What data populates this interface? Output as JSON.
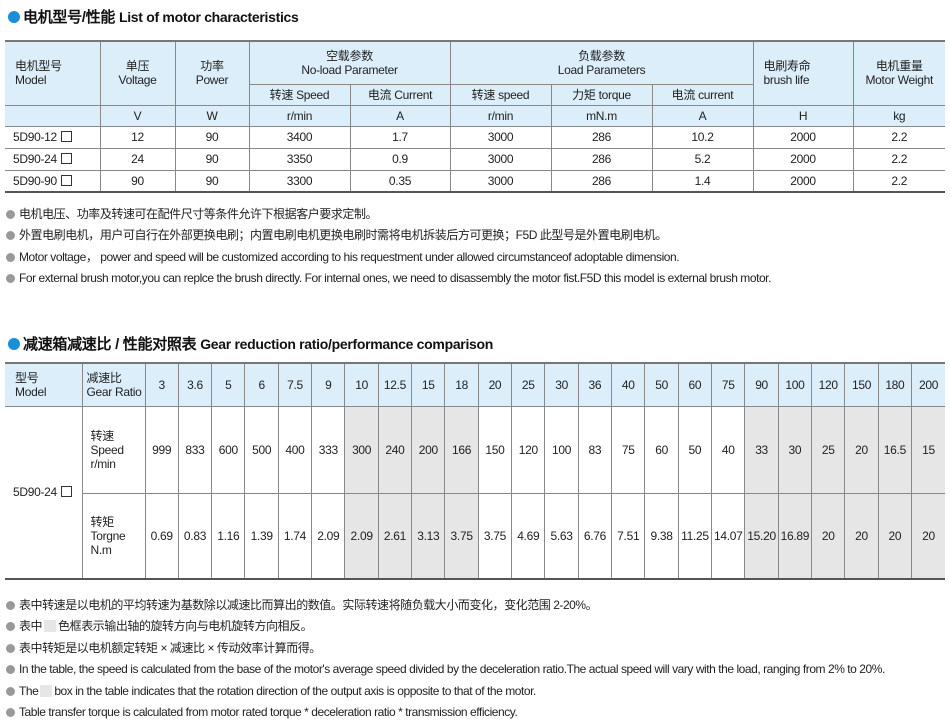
{
  "section1": {
    "title_cn": "电机型号/性能",
    "title_en": "List of motor characteristics",
    "headers": {
      "model": [
        "电机型号",
        "Model"
      ],
      "voltage": [
        "单压",
        "Voltage"
      ],
      "power": [
        "功率",
        "Power"
      ],
      "noload": [
        "空载参数",
        "No-load Parameter"
      ],
      "noload_speed": "转速 Speed",
      "noload_current": "电流 Current",
      "load": [
        "负载参数",
        "Load Parameters"
      ],
      "load_speed": "转速 speed",
      "load_torque": "力矩 torque",
      "load_current": "电流 current",
      "brush": [
        "电刷寿命",
        "brush life"
      ],
      "weight": [
        "电机重量",
        "Motor Weight"
      ]
    },
    "units": [
      "V",
      "W",
      "r/min",
      "A",
      "r/min",
      "mN.m",
      "A",
      "H",
      "kg"
    ],
    "rows": [
      [
        "5D90-12",
        "12",
        "90",
        "3400",
        "1.7",
        "3000",
        "286",
        "10.2",
        "2000",
        "2.2"
      ],
      [
        "5D90-24",
        "24",
        "90",
        "3350",
        "0.9",
        "3000",
        "286",
        "5.2",
        "2000",
        "2.2"
      ],
      [
        "5D90-90",
        "90",
        "90",
        "3300",
        "0.35",
        "3000",
        "286",
        "1.4",
        "2000",
        "2.2"
      ]
    ],
    "notes": [
      "电机电压、功率及转速可在配件尺寸等条件允许下根据客户要求定制。",
      "外置电刷电机，用户可自行在外部更换电刷；内置电刷电机更换电刷时需将电机拆装后方可更换；F5D 此型号是外置电刷电机。",
      "Motor voltage， power and speed will be customized according to his requestment under allowed circumstanceof adoptable dimension.",
      "For external brush motor,you can replce the brush directly. For internal ones, we need to disassembly the motor fist.F5D this model is external brush motor."
    ]
  },
  "section2": {
    "title_cn": "减速箱减速比 / 性能对照表",
    "title_en": "Gear reduction ratio/performance comparison",
    "model_header": [
      "型号",
      "Model"
    ],
    "ratio_header": [
      "减速比",
      "Gear Ratio"
    ],
    "model": "5D90-24",
    "speed_label": [
      "转速",
      "Speed",
      "r/min"
    ],
    "torque_label": [
      "转矩",
      "Torgne",
      "N.m"
    ],
    "ratios": [
      "3",
      "3.6",
      "5",
      "6",
      "7.5",
      "9",
      "10",
      "12.5",
      "15",
      "18",
      "20",
      "25",
      "30",
      "36",
      "40",
      "50",
      "60",
      "75",
      "90",
      "100",
      "120",
      "150",
      "180",
      "200"
    ],
    "speed": [
      "999",
      "833",
      "600",
      "500",
      "400",
      "333",
      "300",
      "240",
      "200",
      "166",
      "150",
      "120",
      "100",
      "83",
      "75",
      "60",
      "50",
      "40",
      "33",
      "30",
      "25",
      "20",
      "16.5",
      "15"
    ],
    "torque": [
      "0.69",
      "0.83",
      "1.16",
      "1.39",
      "1.74",
      "2.09",
      "2.09",
      "2.61",
      "3.13",
      "3.75",
      "3.75",
      "4.69",
      "5.63",
      "6.76",
      "7.51",
      "9.38",
      "11.25",
      "14.07",
      "15.20",
      "16.89",
      "20",
      "20",
      "20",
      "20"
    ],
    "reversed_ratios": [
      "10",
      "12.5",
      "15",
      "18",
      "90",
      "100",
      "120",
      "150",
      "180",
      "200"
    ],
    "notes": [
      "表中转速是以电机的平均转速为基数除以减速比而算出的数值。实际转速将随负载大小而变化，变化范围 2-20%。",
      [
        "表中",
        "色框表示输出轴的旋转方向与电机旋转方向相反。"
      ],
      "表中转矩是以电机额定转矩 × 减速比 × 传动效率计算而得。",
      "In the table, the speed is calculated from the base of the motor's average speed  divided by the deceleration ratio.The actual speed will vary with the load, ranging from 2% to 20%.",
      [
        "The",
        "box in the table indicates that the rotation direction of the output axis is opposite to that of the motor."
      ],
      "Table transfer torque is calculated from motor rated torque * deceleration ratio * transmission efficiency."
    ]
  },
  "colors": {
    "accent": "#1a8fd6",
    "header_bg": "#dceefa",
    "reversed_bg": "#e6e6e6"
  }
}
